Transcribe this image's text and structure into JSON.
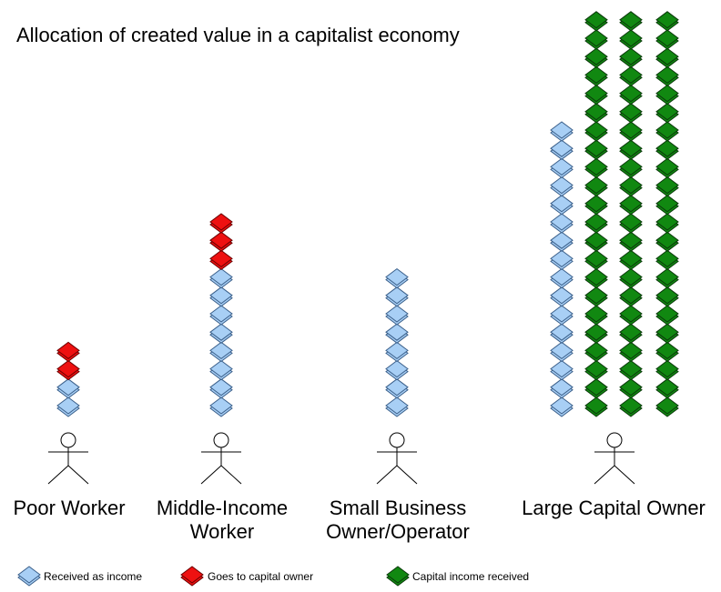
{
  "title": "Allocation of created value in a capitalist economy",
  "groups": [
    {
      "label": "Poor Worker",
      "columns": [
        {
          "income": 2,
          "capital_owner": 2,
          "capital_income": 0
        }
      ]
    },
    {
      "label": "Middle-Income\nWorker",
      "columns": [
        {
          "income": 8,
          "capital_owner": 3,
          "capital_income": 0
        }
      ]
    },
    {
      "label": "Small Business\nOwner/Operator",
      "columns": [
        {
          "income": 8,
          "capital_owner": 0,
          "capital_income": 0
        }
      ]
    },
    {
      "label": "Large Capital Owner",
      "columns": [
        {
          "income": 16,
          "capital_owner": 0,
          "capital_income": 0
        },
        {
          "income": 0,
          "capital_owner": 0,
          "capital_income": 22
        },
        {
          "income": 0,
          "capital_owner": 0,
          "capital_income": 22
        },
        {
          "income": 0,
          "capital_owner": 0,
          "capital_income": 22
        }
      ]
    }
  ],
  "legend": [
    {
      "key": "income",
      "label": "Received as income",
      "color": "#a8cff5"
    },
    {
      "key": "capital_owner",
      "label": "Goes to capital owner",
      "color": "#ee1111"
    },
    {
      "key": "capital_income",
      "label": "Capital income received",
      "color": "#118811"
    }
  ]
}
